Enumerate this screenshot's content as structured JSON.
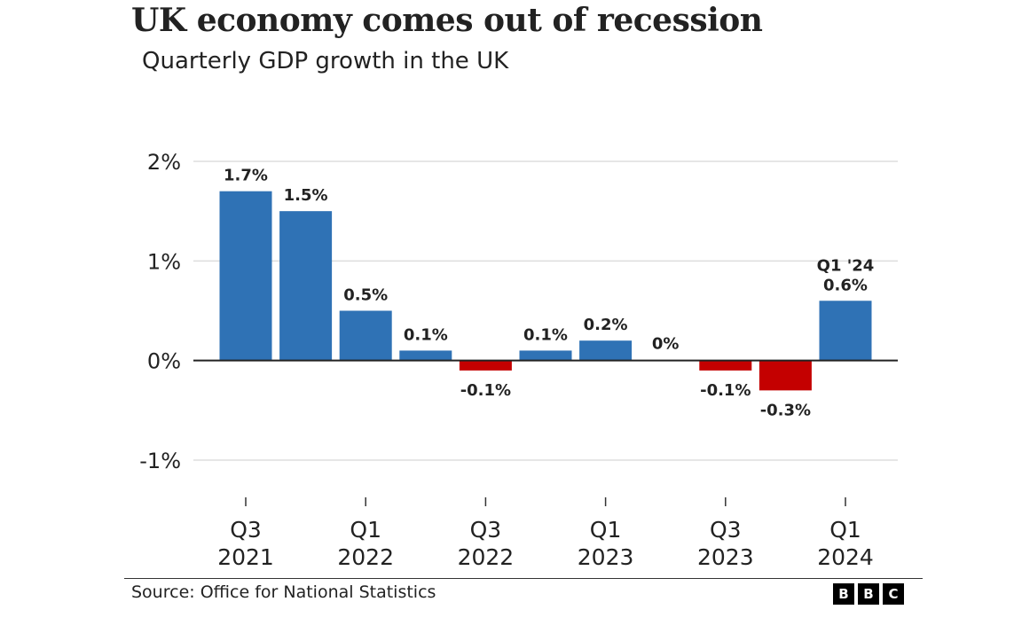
{
  "header": {
    "title": "UK economy comes out of recession",
    "subtitle": "Quarterly GDP growth in the UK"
  },
  "footer": {
    "source": "Source: Office for National Statistics",
    "logo": [
      "B",
      "B",
      "C"
    ]
  },
  "colors": {
    "positive": "#2f72b5",
    "negative": "#c40000",
    "grid": "#dddddd",
    "zero_line": "#222222"
  },
  "chart_data": {
    "type": "bar",
    "title": "UK economy comes out of recession",
    "subtitle": "Quarterly GDP growth in the UK",
    "categories": [
      "Q3 2021",
      "Q4 2021",
      "Q1 2022",
      "Q2 2022",
      "Q3 2022",
      "Q4 2022",
      "Q1 2023",
      "Q2 2023",
      "Q3 2023",
      "Q4 2023",
      "Q1 2024"
    ],
    "values": [
      1.7,
      1.5,
      0.5,
      0.1,
      -0.1,
      0.1,
      0.2,
      0.0,
      -0.1,
      -0.3,
      0.6
    ],
    "data_labels": [
      "1.7%",
      "1.5%",
      "0.5%",
      "0.1%",
      "-0.1%",
      "0.1%",
      "0.2%",
      "0%",
      "-0.1%",
      "-0.3%",
      "0.6%"
    ],
    "highlight_label": "Q1 '24",
    "yticks": [
      {
        "value": 2,
        "label": "2%"
      },
      {
        "value": 1,
        "label": "1%"
      },
      {
        "value": 0,
        "label": "0%"
      },
      {
        "value": -1,
        "label": "-1%"
      }
    ],
    "xticks": [
      {
        "index": 0,
        "label": [
          "Q3",
          "2021"
        ]
      },
      {
        "index": 2,
        "label": [
          "Q1",
          "2022"
        ]
      },
      {
        "index": 4,
        "label": [
          "Q3",
          "2022"
        ]
      },
      {
        "index": 6,
        "label": [
          "Q1",
          "2023"
        ]
      },
      {
        "index": 8,
        "label": [
          "Q3",
          "2023"
        ]
      },
      {
        "index": 10,
        "label": [
          "Q1",
          "2024"
        ]
      }
    ],
    "ylim": [
      -1,
      2
    ],
    "grid": true,
    "legend": "none",
    "xlabel": "",
    "ylabel": "",
    "source": "Source: Office for National Statistics"
  }
}
